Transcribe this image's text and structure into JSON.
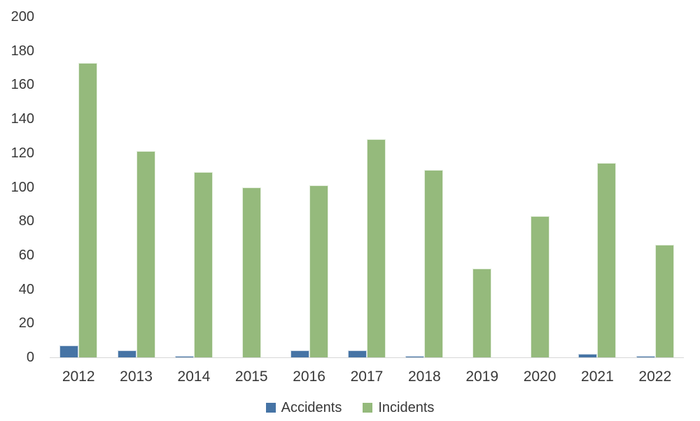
{
  "chart_data": {
    "type": "bar",
    "title": "",
    "xlabel": "",
    "ylabel": "",
    "categories": [
      "2012",
      "2013",
      "2014",
      "2015",
      "2016",
      "2017",
      "2018",
      "2019",
      "2020",
      "2021",
      "2022"
    ],
    "series": [
      {
        "name": "Accidents",
        "color": "#4674A5",
        "values": [
          7,
          4,
          1,
          0,
          4,
          4,
          1,
          0,
          0,
          2,
          1
        ]
      },
      {
        "name": "Incidents",
        "color": "#95BA7C",
        "values": [
          173,
          121,
          109,
          100,
          101,
          128,
          110,
          52,
          83,
          114,
          66
        ]
      }
    ],
    "ylim": [
      0,
      200
    ],
    "ytick_step": 20,
    "y_ticks": [
      "0",
      "20",
      "40",
      "60",
      "80",
      "100",
      "120",
      "140",
      "160",
      "180",
      "200"
    ],
    "grid": false,
    "legend_position": "bottom",
    "axis_line_color": "#D6D6D6",
    "label_color": "#383838",
    "background_color": "#FFFFFF"
  }
}
